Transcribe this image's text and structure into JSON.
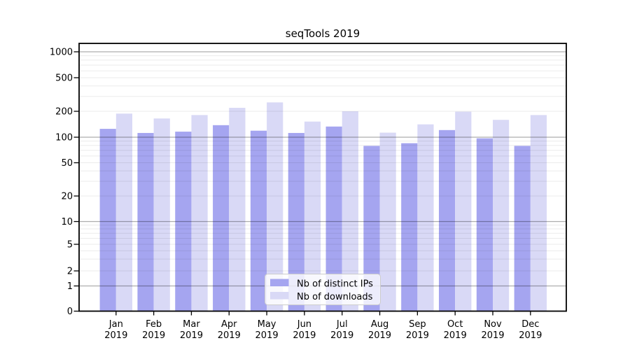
{
  "chart_data": {
    "type": "bar",
    "title": "seqTools 2019",
    "months": [
      "Jan",
      "Feb",
      "Mar",
      "Apr",
      "May",
      "Jun",
      "Jul",
      "Aug",
      "Sep",
      "Oct",
      "Nov",
      "Dec"
    ],
    "year_label": "2019",
    "categories": [
      "Jan 2019",
      "Feb 2019",
      "Mar 2019",
      "Apr 2019",
      "May 2019",
      "Jun 2019",
      "Jul 2019",
      "Aug 2019",
      "Sep 2019",
      "Oct 2019",
      "Nov 2019",
      "Dec 2019"
    ],
    "series": [
      {
        "name": "Nb of distinct IPs",
        "color": "#a5a5f0",
        "values": [
          125,
          112,
          116,
          138,
          119,
          112,
          133,
          79,
          85,
          121,
          97,
          79
        ]
      },
      {
        "name": "Nb of downloads",
        "color": "#d9d9f6",
        "values": [
          188,
          165,
          181,
          220,
          255,
          152,
          200,
          113,
          141,
          198,
          159,
          181
        ]
      }
    ],
    "yticks": [
      0,
      1,
      2,
      5,
      10,
      20,
      50,
      100,
      200,
      500,
      1000
    ],
    "xlabel": "",
    "ylabel": "",
    "yscale": "log",
    "ylim": [
      0,
      1250
    ],
    "grid": true,
    "legend_position": "lower center"
  }
}
